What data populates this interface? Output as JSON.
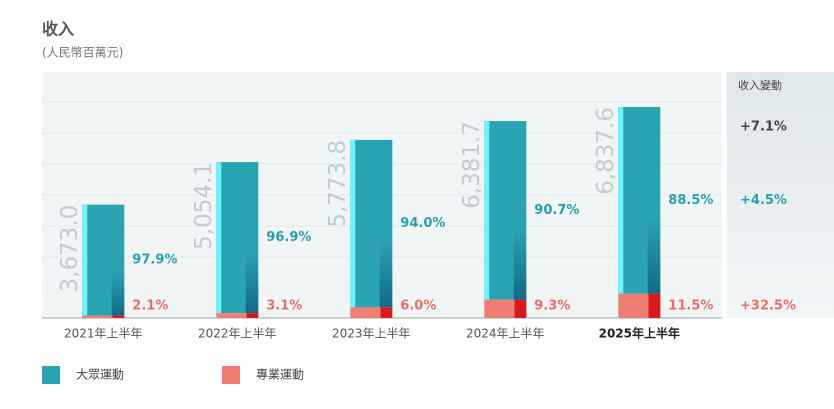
{
  "title": "收入",
  "subtitle": "(人民幣百萬元)",
  "chart_data": {
    "type": "bar",
    "stacked": true,
    "categories": [
      "2021年上半年",
      "2022年上半年",
      "2023年上半年",
      "2024年上半年",
      "2025年上半年"
    ],
    "highlight_category": 4,
    "totals": {
      "values": [
        3673.0,
        5054.1,
        5773.8,
        6381.7,
        6837.6
      ],
      "value_labels": [
        "3,673.0",
        "5,054.1",
        "5,773.8",
        "6,381.7",
        "6,837.6"
      ]
    },
    "series": [
      {
        "name": "大眾運動",
        "color": "#2aa3b3",
        "values": [
          97.9,
          96.9,
          94.0,
          90.7,
          88.5
        ],
        "value_labels": [
          "97.9%",
          "96.9%",
          "94.0%",
          "90.7%",
          "88.5%"
        ]
      },
      {
        "name": "專業運動",
        "color": "#f07d72",
        "values": [
          2.1,
          3.1,
          6.0,
          9.3,
          11.5
        ],
        "value_labels": [
          "2.1%",
          "3.1%",
          "6.0%",
          "9.3%",
          "11.5%"
        ]
      }
    ],
    "change": {
      "title": "收入變動",
      "labels": [
        "+7.1%",
        "+4.5%",
        "+32.5%"
      ]
    }
  }
}
